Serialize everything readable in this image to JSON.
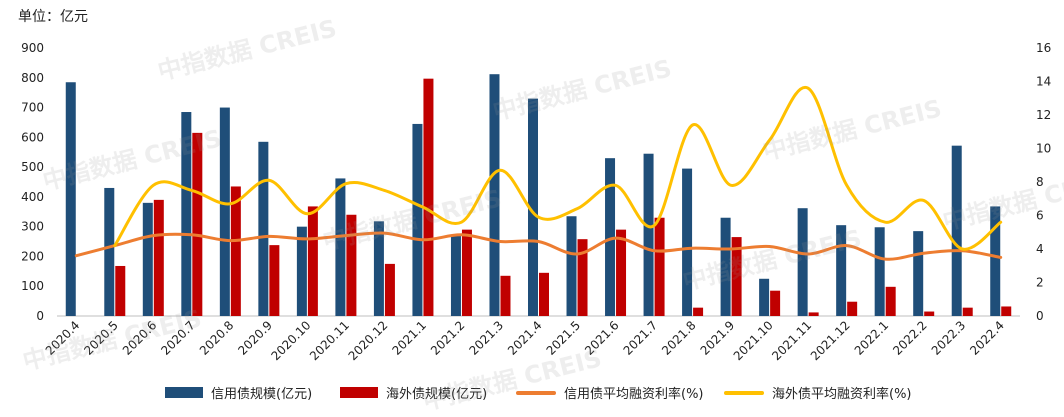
{
  "unit_label": "单位：亿元",
  "watermark": "中指数据 CREIS",
  "colors": {
    "credit_bar": "#1F4E79",
    "overseas_bar": "#C00000",
    "credit_rate": "#ED7D31",
    "overseas_rate": "#FFC000"
  },
  "chart_data": {
    "type": "bar",
    "categories": [
      "2020.4",
      "2020.5",
      "2020.6",
      "2020.7",
      "2020.8",
      "2020.9",
      "2020.10",
      "2020.11",
      "2020.12",
      "2021.1",
      "2021.2",
      "2021.3",
      "2021.4",
      "2021.5",
      "2021.6",
      "2021.7",
      "2021.8",
      "2021.9",
      "2021.10",
      "2021.11",
      "2021.12",
      "2022.1",
      "2022.2",
      "2022.3",
      "2022.4"
    ],
    "y_left": {
      "min": 0,
      "max": 900,
      "step": 100,
      "ticks": [
        "0",
        "100",
        "200",
        "300",
        "400",
        "500",
        "600",
        "700",
        "800",
        "900"
      ]
    },
    "y_right": {
      "min": 0,
      "max": 16,
      "step": 2,
      "ticks": [
        "0",
        "2",
        "4",
        "6",
        "8",
        "10",
        "12",
        "14",
        "16"
      ]
    },
    "series": [
      {
        "name": "信用债规模(亿元)",
        "kind": "bar",
        "axis": "left",
        "values": [
          785,
          430,
          380,
          685,
          700,
          585,
          300,
          462,
          318,
          645,
          270,
          812,
          730,
          335,
          530,
          545,
          495,
          330,
          125,
          362,
          305,
          298,
          285,
          572,
          368
        ]
      },
      {
        "name": "海外债规模(亿元)",
        "kind": "bar",
        "axis": "left",
        "values": [
          0,
          168,
          390,
          615,
          435,
          238,
          368,
          340,
          175,
          797,
          290,
          135,
          145,
          258,
          290,
          330,
          28,
          265,
          85,
          12,
          48,
          98,
          15,
          28,
          32
        ]
      },
      {
        "name": "信用债平均融资利率(%)",
        "kind": "line",
        "axis": "right",
        "values": [
          3.6,
          4.2,
          4.8,
          4.85,
          4.5,
          4.75,
          4.6,
          4.8,
          4.95,
          4.55,
          4.85,
          4.45,
          4.45,
          3.7,
          4.65,
          3.9,
          4.05,
          4.0,
          4.15,
          3.7,
          4.2,
          3.4,
          3.75,
          3.9,
          3.5
        ]
      },
      {
        "name": "海外债平均融资利率(%)",
        "kind": "line",
        "axis": "right",
        "values": [
          0,
          4.2,
          7.8,
          7.5,
          6.7,
          8.1,
          6.1,
          7.9,
          7.5,
          6.5,
          5.6,
          8.7,
          5.9,
          6.4,
          7.8,
          5.4,
          11.4,
          7.8,
          10.5,
          13.6,
          7.8,
          5.6,
          6.9,
          4.0,
          5.6
        ]
      }
    ],
    "legend": "bottom"
  }
}
